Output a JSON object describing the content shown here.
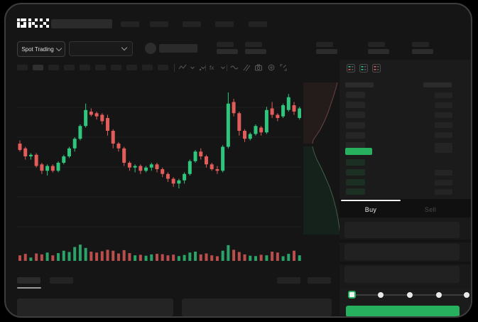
{
  "app": {
    "name": "OKX trading terminal",
    "accent_green": "#27b15e",
    "accent_red": "#e25d5a",
    "background": "#151515"
  },
  "header": {
    "logo_text": "OKX",
    "nav_placeholder_count": 5
  },
  "market_bar": {
    "trading_mode": {
      "label": "Spot Trading",
      "chevron": "chevron-down-icon"
    },
    "pair_selector": {
      "value": "",
      "chevron": "chevron-down-icon"
    },
    "account": {
      "avatar": "avatar",
      "name_placeholder": true
    },
    "stat_placeholder_count": 5
  },
  "chart_toolbar": {
    "timeframe_slot_count": 10,
    "active_slot_index": 1,
    "icons": [
      "candle-style-icon",
      "chevron-down-icon",
      "chart-type-chevron-icon",
      "indicators-fx-icon",
      "indicator-chevron-icon",
      "overlay-wave-icon",
      "compare-lines-icon",
      "camera-icon",
      "settings-circle-icon",
      "fullscreen-icon"
    ]
  },
  "chart_data": [
    {
      "type": "candlestick",
      "title": "",
      "xlabel": "",
      "ylabel": "",
      "note": "no axis labels visible; values are relative units 0-100 read from pixel positions",
      "ylim": [
        0,
        100
      ],
      "grid": true,
      "colors": {
        "up": "#2fc57d",
        "down": "#e25d5a"
      },
      "candles_ohlc": [
        [
          60,
          62,
          55,
          56
        ],
        [
          57,
          58,
          50,
          52
        ],
        [
          52,
          54,
          50,
          53
        ],
        [
          53,
          54,
          45,
          46
        ],
        [
          47,
          48,
          41,
          43
        ],
        [
          43,
          47,
          40,
          46
        ],
        [
          46,
          47,
          42,
          43
        ],
        [
          43,
          49,
          42,
          48
        ],
        [
          48,
          53,
          47,
          52
        ],
        [
          52,
          58,
          51,
          57
        ],
        [
          57,
          64,
          55,
          63
        ],
        [
          63,
          72,
          62,
          71
        ],
        [
          71,
          85,
          70,
          81
        ],
        [
          80,
          82,
          77,
          78
        ],
        [
          79,
          80,
          75,
          77
        ],
        [
          78,
          79,
          72,
          74
        ],
        [
          76,
          78,
          65,
          68
        ],
        [
          68,
          69,
          57,
          60
        ],
        [
          60,
          61,
          55,
          57
        ],
        [
          57,
          58,
          46,
          48
        ],
        [
          48,
          49,
          43,
          45
        ],
        [
          45,
          47,
          42,
          46
        ],
        [
          46,
          47,
          41,
          43
        ],
        [
          43,
          46,
          42,
          45
        ],
        [
          45,
          48,
          43,
          47
        ],
        [
          47,
          48,
          42,
          44
        ],
        [
          44,
          45,
          39,
          41
        ],
        [
          41,
          42,
          36,
          38
        ],
        [
          38,
          39,
          33,
          35
        ],
        [
          35,
          38,
          32,
          37
        ],
        [
          37,
          42,
          35,
          41
        ],
        [
          41,
          50,
          40,
          49
        ],
        [
          49,
          56,
          48,
          55
        ],
        [
          55,
          57,
          50,
          52
        ],
        [
          52,
          53,
          45,
          47
        ],
        [
          47,
          48,
          43,
          44
        ],
        [
          44,
          46,
          41,
          43
        ],
        [
          43,
          59,
          42,
          58
        ],
        [
          58,
          92,
          57,
          85
        ],
        [
          86,
          88,
          77,
          79
        ],
        [
          79,
          80,
          65,
          68
        ],
        [
          68,
          69,
          61,
          63
        ],
        [
          63,
          67,
          62,
          66
        ],
        [
          66,
          72,
          65,
          71
        ],
        [
          70,
          71,
          65,
          67
        ],
        [
          67,
          83,
          66,
          81
        ],
        [
          82,
          86,
          76,
          78
        ],
        [
          78,
          79,
          74,
          76
        ],
        [
          77,
          85,
          76,
          84
        ],
        [
          81,
          91,
          80,
          89
        ],
        [
          84,
          86,
          78,
          80
        ],
        [
          76,
          83,
          75,
          82
        ]
      ],
      "volume": [
        30,
        38,
        18,
        40,
        35,
        45,
        30,
        42,
        55,
        48,
        75,
        88,
        70,
        50,
        45,
        52,
        60,
        55,
        40,
        58,
        42,
        30,
        33,
        28,
        35,
        38,
        36,
        30,
        34,
        26,
        32,
        45,
        50,
        35,
        40,
        30,
        25,
        55,
        85,
        60,
        48,
        35,
        28,
        26,
        33,
        30,
        50,
        45,
        25,
        38,
        55,
        30
      ]
    },
    {
      "type": "area",
      "name": "market-depth",
      "orientation": "vertical",
      "colors": {
        "asks_fill": "#241b1b",
        "asks_line": "#6b4444",
        "bids_fill": "#15221b",
        "bids_line": "#3f5f4b"
      },
      "asks_curve": [
        [
          48,
          4
        ],
        [
          46,
          12
        ],
        [
          43,
          22
        ],
        [
          39,
          34
        ],
        [
          35,
          46
        ],
        [
          30,
          58
        ],
        [
          24,
          70
        ],
        [
          18,
          79
        ],
        [
          14,
          85
        ],
        [
          13,
          90
        ]
      ],
      "bids_curve": [
        [
          13,
          94
        ],
        [
          15,
          102
        ],
        [
          19,
          112
        ],
        [
          25,
          124
        ],
        [
          31,
          137
        ],
        [
          37,
          151
        ],
        [
          42,
          166
        ],
        [
          46,
          181
        ],
        [
          49,
          196
        ],
        [
          51,
          210
        ],
        [
          52,
          218
        ]
      ]
    }
  ],
  "order_book": {
    "view_icons": [
      "book-both-sides-icon",
      "book-bids-only-icon",
      "book-asks-only-icon"
    ],
    "ask_row_count": 6,
    "bid_row_count": 4,
    "ask_right_bars": [
      true,
      true,
      true,
      true,
      true,
      true
    ],
    "bid_right_bars": [
      false,
      true,
      true,
      true
    ],
    "last_price_row": {
      "highlight_color": "#27b15e",
      "right_bar": true
    }
  },
  "trade_panel": {
    "tabs": [
      {
        "label": "Buy",
        "active": true
      },
      {
        "label": "Sell",
        "active": false
      }
    ],
    "field_count": 3,
    "slider": {
      "steps": 5,
      "active_step": 0,
      "handle_color": "#27b15e"
    },
    "submit_button": {
      "label": "",
      "color": "#27b15e"
    }
  },
  "bottom_bar": {
    "tab_placeholder_count": 2,
    "active_tab_index": 0,
    "right_placeholder_count": 2,
    "panel_count": 2
  }
}
